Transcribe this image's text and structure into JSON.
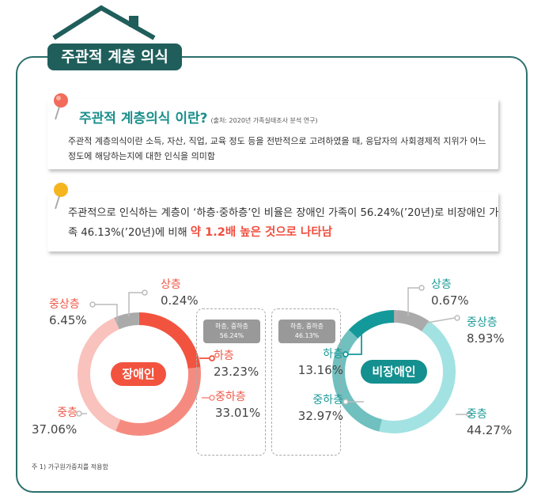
{
  "header": {
    "title": "주관적 계층 의식"
  },
  "definition": {
    "title": "주관적 계층의식 이란?",
    "source": "(출처: 2020년 가족실태조사 분석 연구)",
    "body": "주관적 계층의식이란 소득, 자산, 직업, 교육 정도 등을 전반적으로 고려하였을 때, 응답자의 사회경제적 지위가 어느 정도에 해당하는지에 대한 인식을 의미함"
  },
  "finding": {
    "text": "주관적으로 인식하는 계층이 ‘하층·중하층’인 비율은 장애인 가족이 56.24%(’20년)로 비장애인 가족 46.13%(’20년)에 비해 ",
    "highlight": "약 1.2배 높은 것으로 나타남"
  },
  "chart_data": [
    {
      "type": "pie",
      "title": "장애인",
      "categories": [
        "하층",
        "중하층",
        "중층",
        "중상층",
        "상층"
      ],
      "values": [
        23.23,
        33.01,
        37.06,
        6.45,
        0.24
      ],
      "value_labels": [
        "23.23%",
        "33.01%",
        "37.06%",
        "6.45%",
        "0.24%"
      ],
      "colors": [
        "#f2533f",
        "#f58b80",
        "#f9c2bd",
        "#aaaaaa",
        "#aaaaaa"
      ],
      "summary_label": "하층, 중하층",
      "summary_value": "56.24%"
    },
    {
      "type": "pie",
      "title": "비장애인",
      "categories": [
        "상층",
        "중상층",
        "중층",
        "중하층",
        "하층"
      ],
      "values": [
        0.67,
        8.93,
        44.27,
        32.97,
        13.16
      ],
      "value_labels": [
        "0.67%",
        "8.93%",
        "44.27%",
        "32.97%",
        "13.16%"
      ],
      "colors": [
        "#aaaaaa",
        "#aaaaaa",
        "#a3e2e2",
        "#6fc0bf",
        "#14999a"
      ],
      "summary_label": "하층, 중하층",
      "summary_value": "46.13%"
    }
  ],
  "note": "주 1) 가구원가중치를 적용함"
}
